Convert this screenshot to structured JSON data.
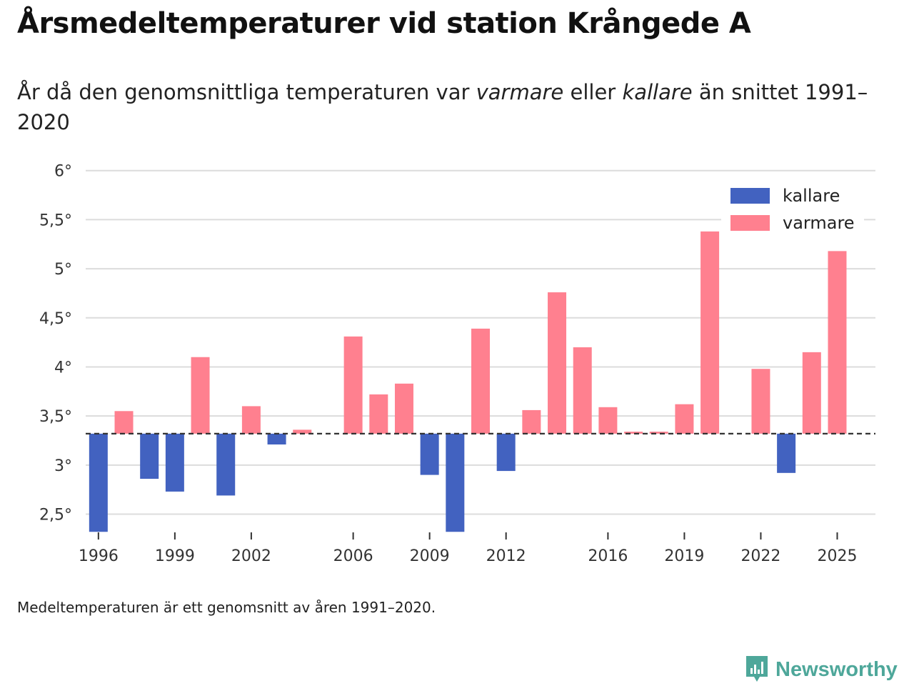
{
  "header": {
    "title": "Årsmedeltemperaturer vid station Krångede A",
    "subtitle_part1": "År då den genomsnittliga temperaturen var ",
    "subtitle_em1": "varmare",
    "subtitle_part2": " eller ",
    "subtitle_em2": "kallare",
    "subtitle_part3": " än snittet 1991–2020"
  },
  "footnote": "Medeltemperaturen är ett genomsnitt av åren 1991–2020.",
  "brand": {
    "name": "Newsworthy",
    "color": "#4ea79a"
  },
  "colors": {
    "kallare": "#4262c0",
    "varmare": "#ff808f",
    "grid": "#dcdcdc",
    "baseline": "#333333"
  },
  "chart_data": {
    "type": "bar",
    "baseline": 3.32,
    "ylim": [
      2.3,
      6.1
    ],
    "yticks": [
      2.5,
      3,
      3.5,
      4,
      4.5,
      5,
      5.5,
      6
    ],
    "ytick_labels": [
      "2,5°",
      "3°",
      "3,5°",
      "4°",
      "4,5°",
      "5°",
      "5,5°",
      "6°"
    ],
    "xlim": [
      1995.5,
      2026.5
    ],
    "xticks": [
      1996,
      1999,
      2002,
      2006,
      2009,
      2012,
      2016,
      2019,
      2022,
      2025
    ],
    "xtick_labels": [
      "1996",
      "1999",
      "2002",
      "2006",
      "2009",
      "2012",
      "2016",
      "2019",
      "2022",
      "2025"
    ],
    "legend": {
      "position": "top-right",
      "items": [
        {
          "key": "kallare",
          "label": "kallare"
        },
        {
          "key": "varmare",
          "label": "varmare"
        }
      ]
    },
    "points": [
      {
        "year": 1996,
        "value": 2.32,
        "category": "kallare"
      },
      {
        "year": 1997,
        "value": 3.55,
        "category": "varmare"
      },
      {
        "year": 1998,
        "value": 2.86,
        "category": "kallare"
      },
      {
        "year": 1999,
        "value": 2.73,
        "category": "kallare"
      },
      {
        "year": 2000,
        "value": 4.1,
        "category": "varmare"
      },
      {
        "year": 2001,
        "value": 2.69,
        "category": "kallare"
      },
      {
        "year": 2002,
        "value": 3.6,
        "category": "varmare"
      },
      {
        "year": 2003,
        "value": 3.21,
        "category": "kallare"
      },
      {
        "year": 2004,
        "value": 3.36,
        "category": "varmare"
      },
      {
        "year": 2006,
        "value": 4.31,
        "category": "varmare"
      },
      {
        "year": 2007,
        "value": 3.72,
        "category": "varmare"
      },
      {
        "year": 2008,
        "value": 3.83,
        "category": "varmare"
      },
      {
        "year": 2009,
        "value": 2.9,
        "category": "kallare"
      },
      {
        "year": 2010,
        "value": 2.32,
        "category": "kallare"
      },
      {
        "year": 2011,
        "value": 4.39,
        "category": "varmare"
      },
      {
        "year": 2012,
        "value": 2.94,
        "category": "kallare"
      },
      {
        "year": 2013,
        "value": 3.56,
        "category": "varmare"
      },
      {
        "year": 2014,
        "value": 4.76,
        "category": "varmare"
      },
      {
        "year": 2015,
        "value": 4.2,
        "category": "varmare"
      },
      {
        "year": 2016,
        "value": 3.59,
        "category": "varmare"
      },
      {
        "year": 2017,
        "value": 3.34,
        "category": "varmare"
      },
      {
        "year": 2018,
        "value": 3.34,
        "category": "varmare"
      },
      {
        "year": 2019,
        "value": 3.62,
        "category": "varmare"
      },
      {
        "year": 2020,
        "value": 5.38,
        "category": "varmare"
      },
      {
        "year": 2022,
        "value": 3.98,
        "category": "varmare"
      },
      {
        "year": 2023,
        "value": 2.92,
        "category": "kallare"
      },
      {
        "year": 2024,
        "value": 4.15,
        "category": "varmare"
      },
      {
        "year": 2025,
        "value": 5.18,
        "category": "varmare"
      }
    ]
  }
}
